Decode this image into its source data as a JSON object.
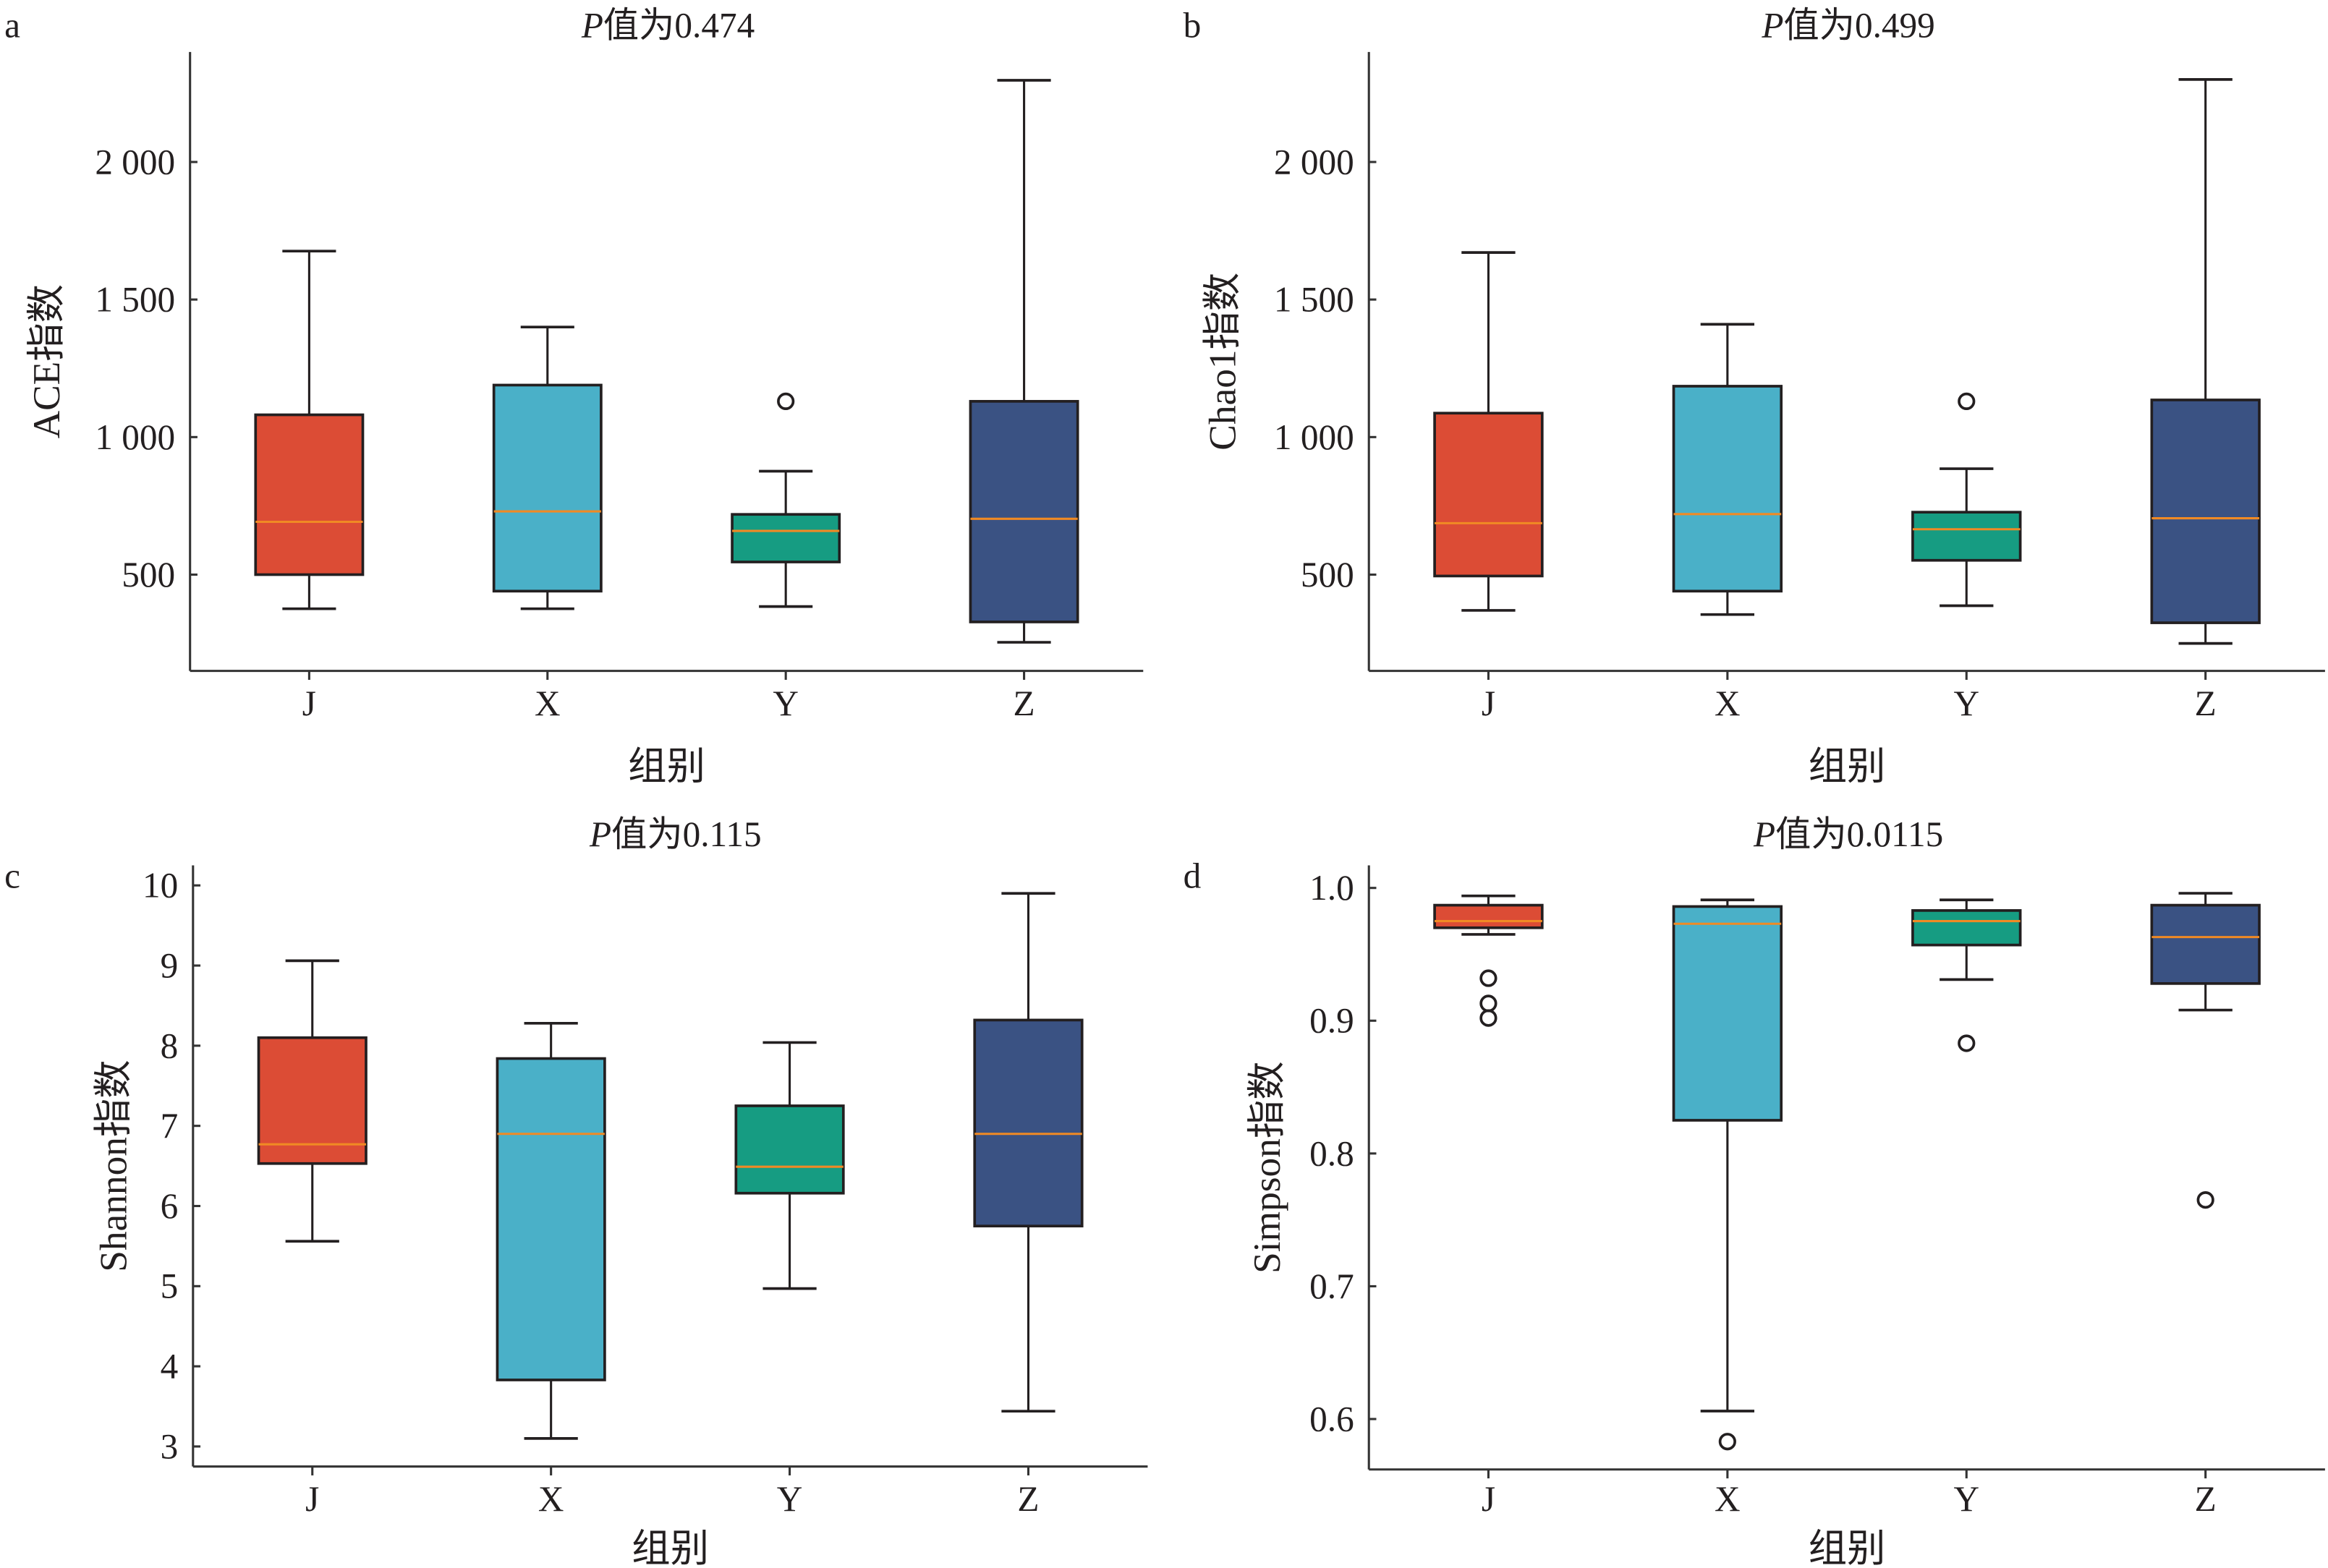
{
  "colors": {
    "J": "#dc4c35",
    "X": "#4ab0c8",
    "Y": "#169c82",
    "Z": "#3a5283",
    "median": "#f08a24",
    "stroke": "#231f20"
  },
  "chart_data": [
    {
      "panel": "a",
      "type": "box",
      "title_prefix": "P",
      "title": "值为0.474",
      "xlabel": "组别",
      "ylabel": "ACE指数",
      "categories": [
        "J",
        "X",
        "Y",
        "Z"
      ],
      "yticks": [
        500,
        1000,
        1500,
        2000
      ],
      "ytick_labels": [
        "500",
        "1 000",
        "1 500",
        "2 000"
      ],
      "ylim": [
        150,
        2400
      ],
      "boxes": [
        {
          "group": "J",
          "whislo": 376,
          "q1": 500,
          "med": 692,
          "q3": 1081,
          "whishi": 1676,
          "fliers": []
        },
        {
          "group": "X",
          "whislo": 376,
          "q1": 440,
          "med": 730,
          "q3": 1189,
          "whishi": 1400,
          "fliers": []
        },
        {
          "group": "Y",
          "whislo": 384,
          "q1": 546,
          "med": 659,
          "q3": 719,
          "whishi": 876,
          "fliers": [
            1130
          ]
        },
        {
          "group": "Z",
          "whislo": 254,
          "q1": 328,
          "med": 703,
          "q3": 1130,
          "whishi": 2297,
          "fliers": []
        }
      ]
    },
    {
      "panel": "b",
      "type": "box",
      "title_prefix": "P",
      "title": "值为0.499",
      "xlabel": "组别",
      "ylabel": "Chao1指数",
      "categories": [
        "J",
        "X",
        "Y",
        "Z"
      ],
      "yticks": [
        500,
        1000,
        1500,
        2000
      ],
      "ytick_labels": [
        "500",
        "1 000",
        "1 500",
        "2 000"
      ],
      "ylim": [
        150,
        2400
      ],
      "boxes": [
        {
          "group": "J",
          "whislo": 370,
          "q1": 495,
          "med": 687,
          "q3": 1087,
          "whishi": 1671,
          "fliers": []
        },
        {
          "group": "X",
          "whislo": 355,
          "q1": 440,
          "med": 720,
          "q3": 1185,
          "whishi": 1410,
          "fliers": []
        },
        {
          "group": "Y",
          "whislo": 387,
          "q1": 552,
          "med": 665,
          "q3": 727,
          "whishi": 885,
          "fliers": [
            1130
          ]
        },
        {
          "group": "Z",
          "whislo": 250,
          "q1": 325,
          "med": 705,
          "q3": 1135,
          "whishi": 2300,
          "fliers": []
        }
      ]
    },
    {
      "panel": "c",
      "type": "box",
      "title_prefix": "P",
      "title": "值为0.115",
      "xlabel": "组别",
      "ylabel": "Shannon指数",
      "categories": [
        "J",
        "X",
        "Y",
        "Z"
      ],
      "yticks": [
        3,
        4,
        5,
        6,
        7,
        8,
        9,
        10
      ],
      "ytick_labels": [
        "3",
        "4",
        "5",
        "6",
        "7",
        "8",
        "9",
        "10"
      ],
      "ylim": [
        2.75,
        10.25
      ],
      "boxes": [
        {
          "group": "J",
          "whislo": 5.56,
          "q1": 6.53,
          "med": 6.77,
          "q3": 8.1,
          "whishi": 9.06,
          "fliers": []
        },
        {
          "group": "X",
          "whislo": 3.1,
          "q1": 3.83,
          "med": 6.9,
          "q3": 7.84,
          "whishi": 8.28,
          "fliers": []
        },
        {
          "group": "Y",
          "whislo": 4.97,
          "q1": 6.16,
          "med": 6.49,
          "q3": 7.25,
          "whishi": 8.04,
          "fliers": []
        },
        {
          "group": "Z",
          "whislo": 3.44,
          "q1": 5.75,
          "med": 6.9,
          "q3": 8.32,
          "whishi": 9.9,
          "fliers": []
        }
      ]
    },
    {
      "panel": "d",
      "type": "box",
      "title_prefix": "P",
      "title": "值为0.0115",
      "xlabel": "组别",
      "ylabel": "Simpson指数",
      "categories": [
        "J",
        "X",
        "Y",
        "Z"
      ],
      "yticks": [
        0.6,
        0.7,
        0.8,
        0.9,
        1.0
      ],
      "ytick_labels": [
        "0.6",
        "0.7",
        "0.8",
        "0.9",
        "1.0"
      ],
      "ylim": [
        0.562,
        1.017
      ],
      "boxes": [
        {
          "group": "J",
          "whislo": 0.965,
          "q1": 0.97,
          "med": 0.975,
          "q3": 0.987,
          "whishi": 0.994,
          "fliers": [
            0.932,
            0.913,
            0.902
          ]
        },
        {
          "group": "X",
          "whislo": 0.606,
          "q1": 0.825,
          "med": 0.973,
          "q3": 0.986,
          "whishi": 0.991,
          "fliers": [
            0.583
          ]
        },
        {
          "group": "Y",
          "whislo": 0.931,
          "q1": 0.957,
          "med": 0.975,
          "q3": 0.983,
          "whishi": 0.991,
          "fliers": [
            0.883
          ]
        },
        {
          "group": "Z",
          "whislo": 0.908,
          "q1": 0.928,
          "med": 0.963,
          "q3": 0.987,
          "whishi": 0.996,
          "fliers": [
            0.765
          ]
        }
      ]
    }
  ]
}
